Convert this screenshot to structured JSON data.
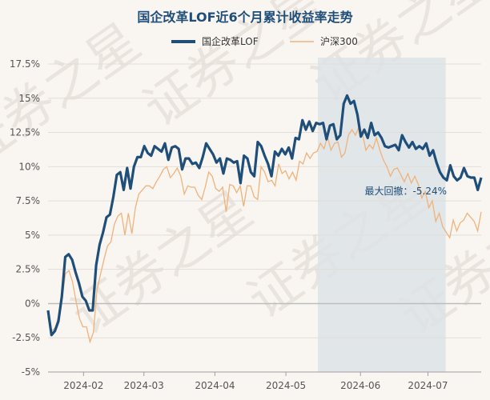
{
  "chart_data": {
    "type": "line",
    "title": "国企改革LOF近6个月累计收益率走势",
    "legend": [
      {
        "name": "国企改革LOF",
        "color": "#1f4e79"
      },
      {
        "name": "沪深300",
        "color": "#f0b27a"
      }
    ],
    "y_ticks": [
      "17.5%",
      "15%",
      "12.5%",
      "10%",
      "7.5%",
      "5%",
      "2.5%",
      "0%",
      "-2.5%",
      "-5%"
    ],
    "ylim": [
      -5,
      17.5
    ],
    "x_ticks": [
      {
        "label": "2024-02",
        "x": 10
      },
      {
        "label": "2024-03",
        "x": 27
      },
      {
        "label": "2024-04",
        "x": 47
      },
      {
        "label": "2024-05",
        "x": 67
      },
      {
        "label": "2024-06",
        "x": 88
      },
      {
        "label": "2024-07",
        "x": 107
      }
    ],
    "x_range": [
      0,
      122
    ],
    "drawdown_shade": {
      "x_start": 76,
      "x_end": 112
    },
    "annotation": "最大回撤：-5.24%",
    "watermark": "证券之星",
    "series": [
      {
        "name": "国企改革LOF",
        "color": "#1f4e79",
        "values": [
          -0.5,
          -2.3,
          -2.0,
          -1.3,
          0.5,
          3.4,
          3.6,
          3.2,
          2.3,
          1.5,
          0.5,
          0.2,
          -0.5,
          -0.5,
          2.8,
          4.3,
          5.2,
          6.3,
          6.5,
          7.8,
          9.4,
          9.6,
          8.3,
          9.9,
          8.4,
          10.0,
          10.7,
          10.7,
          11.5,
          11.0,
          10.8,
          11.5,
          11.3,
          11.1,
          11.7,
          10.5,
          11.4,
          11.5,
          11.3,
          9.8,
          10.6,
          10.6,
          10.2,
          10.3,
          9.9,
          10.7,
          11.7,
          11.3,
          10.9,
          10.3,
          10.6,
          9.5,
          10.6,
          10.5,
          10.3,
          10.4,
          8.8,
          10.8,
          10.6,
          9.6,
          9.3,
          11.8,
          11.5,
          10.8,
          10.2,
          9.3,
          11.1,
          10.8,
          11.3,
          10.9,
          11.4,
          10.6,
          12.1,
          12.0,
          13.4,
          12.7,
          13.3,
          12.6,
          13.2,
          13.1,
          13.2,
          12.0,
          13.0,
          13.1,
          12.0,
          12.3,
          14.6,
          15.2,
          14.6,
          14.8,
          13.8,
          12.2,
          12.7,
          12.1,
          13.2,
          12.3,
          12.5,
          12.1,
          11.5,
          11.4,
          11.5,
          11.6,
          11.2,
          12.3,
          11.8,
          11.4,
          11.8,
          11.3,
          11.5,
          11.3,
          11.7,
          10.8,
          11.2,
          10.3,
          9.6,
          9.2,
          9.0,
          10.1,
          9.3,
          9.0,
          9.2,
          9.9,
          9.3,
          9.2,
          9.2,
          8.3,
          9.2
        ]
      },
      {
        "name": "沪深300",
        "color": "#f0b27a",
        "values": [
          -1.0,
          -2.0,
          -1.8,
          -1.0,
          0.3,
          2.2,
          2.4,
          1.6,
          0.2,
          -1.1,
          -1.7,
          -1.7,
          -2.8,
          -2.1,
          1.0,
          2.1,
          3.2,
          4.2,
          4.5,
          5.8,
          6.4,
          6.6,
          5.0,
          6.6,
          5.1,
          7.0,
          8.0,
          8.3,
          8.6,
          8.6,
          8.4,
          8.9,
          9.3,
          9.8,
          10.0,
          9.2,
          9.5,
          9.9,
          9.3,
          8.0,
          8.6,
          8.5,
          8.5,
          7.9,
          7.6,
          8.5,
          9.6,
          9.3,
          8.4,
          8.2,
          8.5,
          6.7,
          8.7,
          8.6,
          8.1,
          8.6,
          7.1,
          8.6,
          8.6,
          7.8,
          7.6,
          10.0,
          9.6,
          8.9,
          9.0,
          8.6,
          10.2,
          9.5,
          9.7,
          9.1,
          9.6,
          9.0,
          10.4,
          10.2,
          11.0,
          10.6,
          11.0,
          11.1,
          11.7,
          11.3,
          12.2,
          11.2,
          11.7,
          11.8,
          10.7,
          11.0,
          12.3,
          12.7,
          12.3,
          12.9,
          12.4,
          11.2,
          11.6,
          11.3,
          12.1,
          11.2,
          10.5,
          10.0,
          9.3,
          9.8,
          9.9,
          9.4,
          8.9,
          9.5,
          8.8,
          9.3,
          8.7,
          7.7,
          8.2,
          7.0,
          7.5,
          6.0,
          6.6,
          5.6,
          5.2,
          4.8,
          6.1,
          5.3,
          5.9,
          6.1,
          6.6,
          6.3,
          6.0,
          5.3,
          6.7
        ]
      }
    ]
  }
}
